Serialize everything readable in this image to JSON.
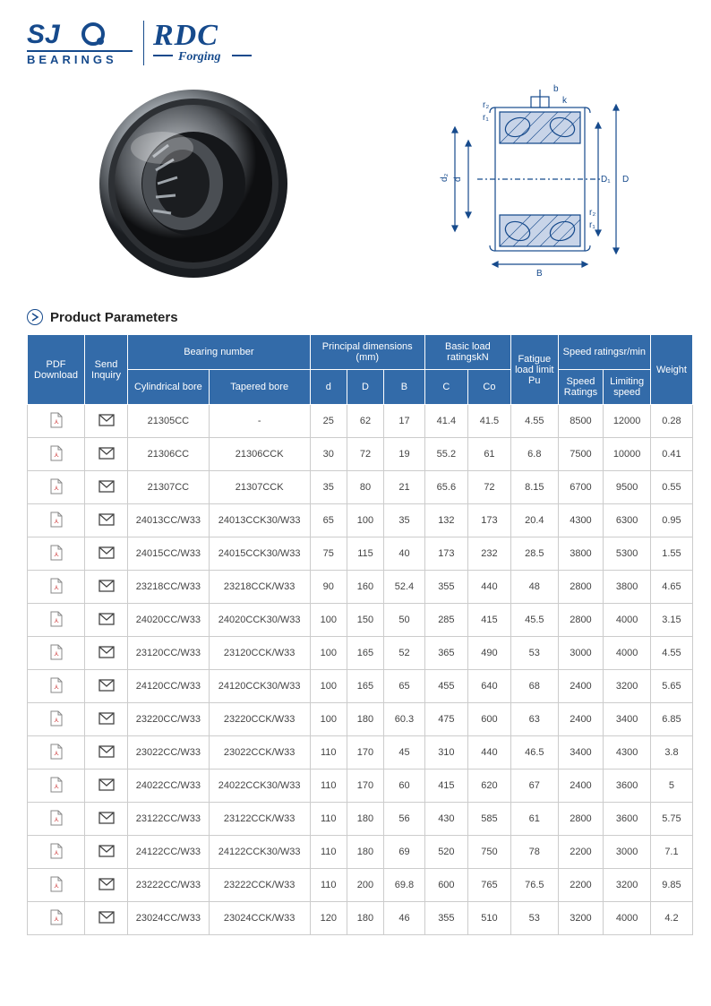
{
  "logos": {
    "sjo_top": "SJO",
    "sjo_bottom": "BEARINGS",
    "rdc_top": "RDC",
    "rdc_bottom": "Forging"
  },
  "section_title": "Product Parameters",
  "header": {
    "pdf": "PDF Download",
    "inq": "Send Inquiry",
    "bn": "Bearing number",
    "cyl": "Cylindrical bore",
    "tap": "Tapered bore",
    "pd": "Principal dimensions (mm)",
    "d": "d",
    "D": "D",
    "B": "B",
    "bl": "Basic load ratingskN",
    "C": "C",
    "Co": "Co",
    "fat": "Fatigue load limit Pu",
    "sp": "Speed ratingsr/min",
    "sr": "Speed Ratings",
    "ls": "Limiting speed",
    "w": "Weight"
  },
  "rows": [
    {
      "cyl": "21305CC",
      "tap": "-",
      "d": "25",
      "D": "62",
      "B": "17",
      "C": "41.4",
      "Co": "41.5",
      "fat": "4.55",
      "sr": "8500",
      "ls": "12000",
      "w": "0.28"
    },
    {
      "cyl": "21306CC",
      "tap": "21306CCK",
      "d": "30",
      "D": "72",
      "B": "19",
      "C": "55.2",
      "Co": "61",
      "fat": "6.8",
      "sr": "7500",
      "ls": "10000",
      "w": "0.41"
    },
    {
      "cyl": "21307CC",
      "tap": "21307CCK",
      "d": "35",
      "D": "80",
      "B": "21",
      "C": "65.6",
      "Co": "72",
      "fat": "8.15",
      "sr": "6700",
      "ls": "9500",
      "w": "0.55"
    },
    {
      "cyl": "24013CC/W33",
      "tap": "24013CCK30/W33",
      "d": "65",
      "D": "100",
      "B": "35",
      "C": "132",
      "Co": "173",
      "fat": "20.4",
      "sr": "4300",
      "ls": "6300",
      "w": "0.95"
    },
    {
      "cyl": "24015CC/W33",
      "tap": "24015CCK30/W33",
      "d": "75",
      "D": "115",
      "B": "40",
      "C": "173",
      "Co": "232",
      "fat": "28.5",
      "sr": "3800",
      "ls": "5300",
      "w": "1.55"
    },
    {
      "cyl": "23218CC/W33",
      "tap": "23218CCK/W33",
      "d": "90",
      "D": "160",
      "B": "52.4",
      "C": "355",
      "Co": "440",
      "fat": "48",
      "sr": "2800",
      "ls": "3800",
      "w": "4.65"
    },
    {
      "cyl": "24020CC/W33",
      "tap": "24020CCK30/W33",
      "d": "100",
      "D": "150",
      "B": "50",
      "C": "285",
      "Co": "415",
      "fat": "45.5",
      "sr": "2800",
      "ls": "4000",
      "w": "3.15"
    },
    {
      "cyl": "23120CC/W33",
      "tap": "23120CCK/W33",
      "d": "100",
      "D": "165",
      "B": "52",
      "C": "365",
      "Co": "490",
      "fat": "53",
      "sr": "3000",
      "ls": "4000",
      "w": "4.55"
    },
    {
      "cyl": "24120CC/W33",
      "tap": "24120CCK30/W33",
      "d": "100",
      "D": "165",
      "B": "65",
      "C": "455",
      "Co": "640",
      "fat": "68",
      "sr": "2400",
      "ls": "3200",
      "w": "5.65"
    },
    {
      "cyl": "23220CC/W33",
      "tap": "23220CCK/W33",
      "d": "100",
      "D": "180",
      "B": "60.3",
      "C": "475",
      "Co": "600",
      "fat": "63",
      "sr": "2400",
      "ls": "3400",
      "w": "6.85"
    },
    {
      "cyl": "23022CC/W33",
      "tap": "23022CCK/W33",
      "d": "110",
      "D": "170",
      "B": "45",
      "C": "310",
      "Co": "440",
      "fat": "46.5",
      "sr": "3400",
      "ls": "4300",
      "w": "3.8"
    },
    {
      "cyl": "24022CC/W33",
      "tap": "24022CCK30/W33",
      "d": "110",
      "D": "170",
      "B": "60",
      "C": "415",
      "Co": "620",
      "fat": "67",
      "sr": "2400",
      "ls": "3600",
      "w": "5"
    },
    {
      "cyl": "23122CC/W33",
      "tap": "23122CCK/W33",
      "d": "110",
      "D": "180",
      "B": "56",
      "C": "430",
      "Co": "585",
      "fat": "61",
      "sr": "2800",
      "ls": "3600",
      "w": "5.75"
    },
    {
      "cyl": "24122CC/W33",
      "tap": "24122CCK30/W33",
      "d": "110",
      "D": "180",
      "B": "69",
      "C": "520",
      "Co": "750",
      "fat": "78",
      "sr": "2200",
      "ls": "3000",
      "w": "7.1"
    },
    {
      "cyl": "23222CC/W33",
      "tap": "23222CCK/W33",
      "d": "110",
      "D": "200",
      "B": "69.8",
      "C": "600",
      "Co": "765",
      "fat": "76.5",
      "sr": "2200",
      "ls": "3200",
      "w": "9.85"
    },
    {
      "cyl": "23024CC/W33",
      "tap": "23024CCK/W33",
      "d": "120",
      "D": "180",
      "B": "46",
      "C": "355",
      "Co": "510",
      "fat": "53",
      "sr": "3200",
      "ls": "4000",
      "w": "4.2"
    }
  ],
  "colors": {
    "brand": "#164a8c",
    "table_header": "#336ba9",
    "border": "#cccccc"
  }
}
